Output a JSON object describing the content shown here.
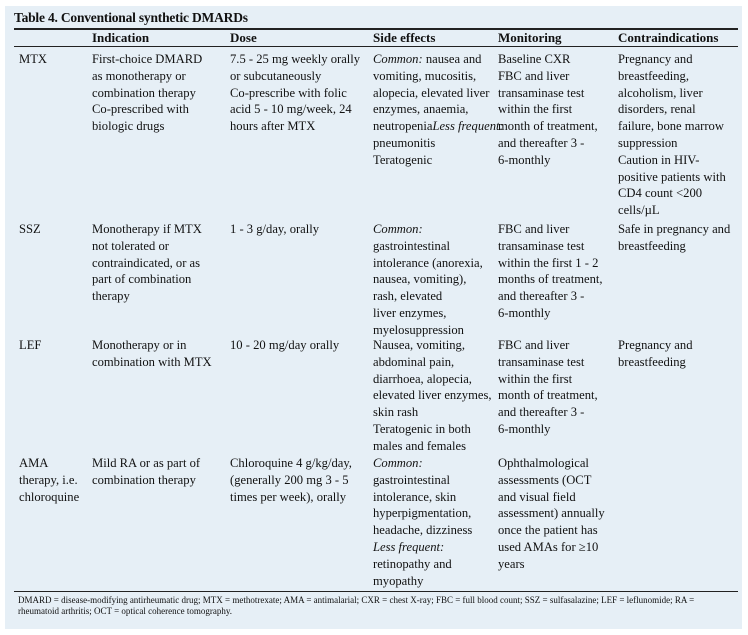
{
  "title": "Table 4. Conventional synthetic DMARDs",
  "headers": [
    "",
    "Indication",
    "Dose",
    "Side effects",
    "Monitoring",
    "Contraindications"
  ],
  "rows": [
    {
      "drug": "MTX",
      "indication": "First-choice DMARD\nas monotherapy or\ncombination therapy\nCo-prescribed with\nbiologic drugs",
      "dose": "7.5 - 25 mg weekly orally\nor subcutaneously\nCo-prescribe with folic\nacid 5 - 10 mg/week, 24\nhours after MTX",
      "side_effects": [
        {
          "label": "Common:",
          "text": " nausea and\nvomiting, mucositis,\nalopecia, elevated liver\nenzymes, anaemia,\nneutropenia"
        },
        {
          "label": "Less frequent:",
          "text": "\npneumonitis\nTeratogenic"
        }
      ],
      "monitoring": "Baseline CXR\nFBC and liver\ntransaminase test\nwithin the first\nmonth of treatment,\nand thereafter 3 -\n6-monthly",
      "contraindications": "Pregnancy and\nbreastfeeding,\nalcoholism, liver\ndisorders, renal\nfailure, bone marrow\nsuppression\nCaution in HIV-\npositive patients with\nCD4 count <200\ncells/µL"
    },
    {
      "drug": "SSZ",
      "indication": "Monotherapy if MTX\nnot tolerated or\ncontraindicated, or as\npart of combination\ntherapy",
      "dose": "1 - 3 g/day, orally",
      "side_effects": [
        {
          "label": "Common:",
          "text": "\ngastrointestinal\nintolerance (anorexia,\nnausea, vomiting),\nrash, elevated\nliver enzymes,\nmyelosuppression"
        }
      ],
      "monitoring": "FBC and liver\ntransaminase test\nwithin the first 1 - 2\nmonths of treatment,\nand thereafter 3 -\n6-monthly",
      "contraindications": "Safe in pregnancy and\nbreastfeeding"
    },
    {
      "drug": "LEF",
      "indication": "Monotherapy or in\ncombination with MTX",
      "dose": "10 - 20 mg/day orally",
      "side_effects": [
        {
          "label": "",
          "text": "Nausea, vomiting,\nabdominal pain,\ndiarrhoea, alopecia,\nelevated liver enzymes,\nskin rash\nTeratogenic in both\nmales and females"
        }
      ],
      "monitoring": "FBC and liver\ntransaminase test\nwithin the first\nmonth of treatment,\nand thereafter 3 -\n6-monthly",
      "contraindications": "Pregnancy and\nbreastfeeding"
    },
    {
      "drug": "AMA\ntherapy, i.e.\nchloroquine",
      "indication": "Mild RA or as part of\ncombination therapy",
      "dose": "Chloroquine 4 g/kg/day,\n(generally 200 mg 3 - 5\ntimes per week), orally",
      "side_effects": [
        {
          "label": "Common:",
          "text": "\ngastrointestinal\nintolerance, skin\nhyperpigmentation,\nheadache, dizziness\n"
        },
        {
          "label": "Less frequent:",
          "text": "\nretinopathy and\nmyopathy"
        }
      ],
      "monitoring": "Ophthalmological\nassessments (OCT\nand visual field\nassessment) annually\nonce the patient has\nused AMAs for ≥10\nyears",
      "contraindications": ""
    }
  ],
  "footnote": "DMARD = disease-modifying antirheumatic drug; MTX = methotrexate; AMA = antimalarial; CXR = chest X-ray; FBC = full blood count; SSZ = sulfasalazine; LEF = leflunomide; RA = rheumatoid arthritis; OCT = optical coherence tomography.",
  "colors": {
    "background": "#e6eff6",
    "rule": "#222222"
  }
}
